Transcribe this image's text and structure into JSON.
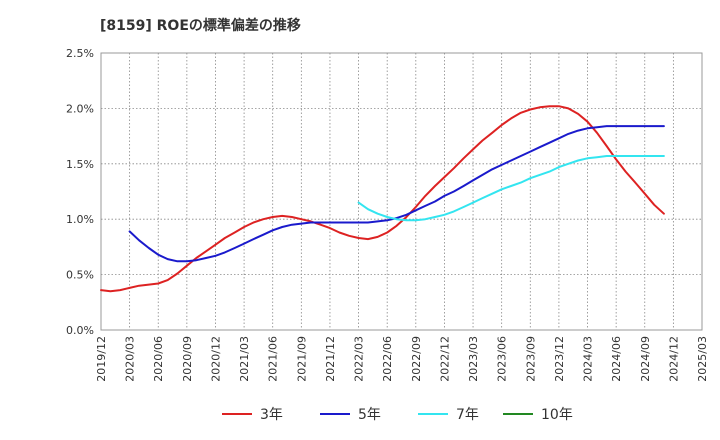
{
  "chart_data": {
    "type": "line",
    "title": "[8159]  ROEの標準偏差の推移",
    "xlabel": "",
    "ylabel": "",
    "x": [
      "2019/12",
      "2020/03",
      "2020/06",
      "2020/09",
      "2020/12",
      "2021/03",
      "2021/06",
      "2021/09",
      "2021/12",
      "2022/03",
      "2022/06",
      "2022/09",
      "2022/12",
      "2023/03",
      "2023/06",
      "2023/09",
      "2023/12",
      "2024/03",
      "2024/06",
      "2024/09",
      "2024/12",
      "2025/03"
    ],
    "yticks": [
      "0.0%",
      "0.5%",
      "1.0%",
      "1.5%",
      "2.0%",
      "2.5%"
    ],
    "ylim": [
      0,
      2.5
    ],
    "grid": true,
    "series": [
      {
        "name": "3年",
        "color": "#dd2222",
        "points": [
          [
            0,
            0.36
          ],
          [
            0.33,
            0.35
          ],
          [
            0.67,
            0.36
          ],
          [
            1,
            0.38
          ],
          [
            1.33,
            0.4
          ],
          [
            1.67,
            0.41
          ],
          [
            2,
            0.42
          ],
          [
            2.33,
            0.45
          ],
          [
            2.67,
            0.51
          ],
          [
            3,
            0.58
          ],
          [
            3.33,
            0.65
          ],
          [
            3.67,
            0.71
          ],
          [
            4,
            0.77
          ],
          [
            4.33,
            0.83
          ],
          [
            4.67,
            0.88
          ],
          [
            5,
            0.93
          ],
          [
            5.33,
            0.97
          ],
          [
            5.67,
            1.0
          ],
          [
            6,
            1.02
          ],
          [
            6.33,
            1.03
          ],
          [
            6.67,
            1.02
          ],
          [
            7,
            1.0
          ],
          [
            7.33,
            0.98
          ],
          [
            7.67,
            0.95
          ],
          [
            8,
            0.92
          ],
          [
            8.33,
            0.88
          ],
          [
            8.67,
            0.85
          ],
          [
            9,
            0.83
          ],
          [
            9.33,
            0.82
          ],
          [
            9.67,
            0.84
          ],
          [
            10,
            0.88
          ],
          [
            10.33,
            0.94
          ],
          [
            10.67,
            1.02
          ],
          [
            11,
            1.11
          ],
          [
            11.33,
            1.21
          ],
          [
            11.67,
            1.3
          ],
          [
            12,
            1.38
          ],
          [
            12.33,
            1.46
          ],
          [
            12.67,
            1.55
          ],
          [
            13,
            1.63
          ],
          [
            13.33,
            1.71
          ],
          [
            13.67,
            1.78
          ],
          [
            14,
            1.85
          ],
          [
            14.33,
            1.91
          ],
          [
            14.67,
            1.96
          ],
          [
            15,
            1.99
          ],
          [
            15.33,
            2.01
          ],
          [
            15.67,
            2.02
          ],
          [
            16,
            2.02
          ],
          [
            16.33,
            2.0
          ],
          [
            16.67,
            1.95
          ],
          [
            17,
            1.88
          ],
          [
            17.33,
            1.78
          ],
          [
            17.67,
            1.66
          ],
          [
            18,
            1.54
          ],
          [
            18.33,
            1.43
          ],
          [
            18.67,
            1.33
          ],
          [
            19,
            1.23
          ],
          [
            19.33,
            1.13
          ],
          [
            19.67,
            1.05
          ]
        ]
      },
      {
        "name": "5年",
        "color": "#1a1acc",
        "points": [
          [
            1,
            0.89
          ],
          [
            1.33,
            0.81
          ],
          [
            1.67,
            0.74
          ],
          [
            2,
            0.68
          ],
          [
            2.33,
            0.64
          ],
          [
            2.67,
            0.62
          ],
          [
            3,
            0.62
          ],
          [
            3.33,
            0.63
          ],
          [
            3.67,
            0.65
          ],
          [
            4,
            0.67
          ],
          [
            4.33,
            0.7
          ],
          [
            4.67,
            0.74
          ],
          [
            5,
            0.78
          ],
          [
            5.33,
            0.82
          ],
          [
            5.67,
            0.86
          ],
          [
            6,
            0.9
          ],
          [
            6.33,
            0.93
          ],
          [
            6.67,
            0.95
          ],
          [
            7,
            0.96
          ],
          [
            7.33,
            0.97
          ],
          [
            7.67,
            0.97
          ],
          [
            8,
            0.97
          ],
          [
            8.33,
            0.97
          ],
          [
            8.67,
            0.97
          ],
          [
            9,
            0.97
          ],
          [
            9.33,
            0.97
          ],
          [
            9.67,
            0.98
          ],
          [
            10,
            0.99
          ],
          [
            10.33,
            1.01
          ],
          [
            10.67,
            1.04
          ],
          [
            11,
            1.08
          ],
          [
            11.33,
            1.12
          ],
          [
            11.67,
            1.16
          ],
          [
            12,
            1.21
          ],
          [
            12.33,
            1.25
          ],
          [
            12.67,
            1.3
          ],
          [
            13,
            1.35
          ],
          [
            13.33,
            1.4
          ],
          [
            13.67,
            1.45
          ],
          [
            14,
            1.49
          ],
          [
            14.33,
            1.53
          ],
          [
            14.67,
            1.57
          ],
          [
            15,
            1.61
          ],
          [
            15.33,
            1.65
          ],
          [
            15.67,
            1.69
          ],
          [
            16,
            1.73
          ],
          [
            16.33,
            1.77
          ],
          [
            16.67,
            1.8
          ],
          [
            17,
            1.82
          ],
          [
            17.33,
            1.83
          ],
          [
            17.67,
            1.84
          ],
          [
            18,
            1.84
          ],
          [
            18.33,
            1.84
          ],
          [
            18.67,
            1.84
          ],
          [
            19,
            1.84
          ],
          [
            19.33,
            1.84
          ],
          [
            19.67,
            1.84
          ]
        ]
      },
      {
        "name": "7年",
        "color": "#33e5f0",
        "points": [
          [
            9,
            1.15
          ],
          [
            9.33,
            1.09
          ],
          [
            9.67,
            1.05
          ],
          [
            10,
            1.02
          ],
          [
            10.33,
            1.0
          ],
          [
            10.67,
            0.99
          ],
          [
            11,
            0.99
          ],
          [
            11.33,
            1.0
          ],
          [
            11.67,
            1.02
          ],
          [
            12,
            1.04
          ],
          [
            12.33,
            1.07
          ],
          [
            12.67,
            1.11
          ],
          [
            13,
            1.15
          ],
          [
            13.33,
            1.19
          ],
          [
            13.67,
            1.23
          ],
          [
            14,
            1.27
          ],
          [
            14.33,
            1.3
          ],
          [
            14.67,
            1.33
          ],
          [
            15,
            1.37
          ],
          [
            15.33,
            1.4
          ],
          [
            15.67,
            1.43
          ],
          [
            16,
            1.47
          ],
          [
            16.33,
            1.5
          ],
          [
            16.67,
            1.53
          ],
          [
            17,
            1.55
          ],
          [
            17.33,
            1.56
          ],
          [
            17.67,
            1.57
          ],
          [
            18,
            1.57
          ],
          [
            18.33,
            1.57
          ],
          [
            18.67,
            1.57
          ],
          [
            19,
            1.57
          ],
          [
            19.33,
            1.57
          ],
          [
            19.67,
            1.57
          ]
        ]
      },
      {
        "name": "10年",
        "color": "#228822",
        "points": []
      }
    ],
    "legend_position": "bottom"
  }
}
